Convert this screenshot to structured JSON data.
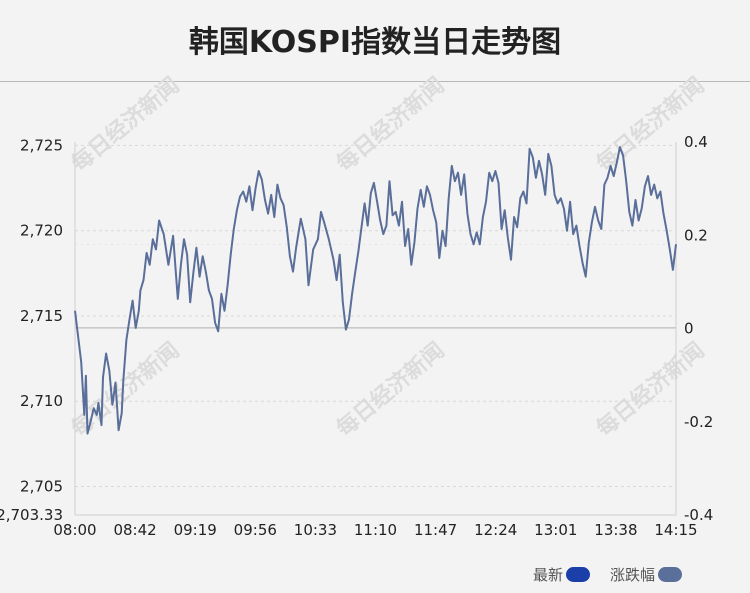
{
  "chart_data": {
    "type": "line",
    "title": "韩国KOSPI指数当日走势图",
    "watermark": "每日经济新闻",
    "x_tick_labels": [
      "08:00",
      "08:42",
      "09:19",
      "09:56",
      "10:33",
      "11:10",
      "11:47",
      "12:24",
      "13:01",
      "13:38",
      "14:15"
    ],
    "y_left_tick_labels": [
      "2,725",
      "2,720",
      "2,715",
      "2,710",
      "2,705",
      "2,703.33"
    ],
    "y_right_tick_labels": [
      "0.4",
      "0.2",
      "0",
      "-0.2",
      "-0.4"
    ],
    "y_left_range": [
      2703.33,
      2725.2
    ],
    "y_right_range": [
      -0.4,
      0.4
    ],
    "reference_line": 2714.3,
    "grid": true,
    "legend_position": "bottom-right",
    "colors": {
      "series": "#5a6e9a",
      "latest_swatch": "#1a3fa8",
      "change_swatch": "#5b6f9b",
      "background": "#f3f3f3"
    },
    "series": [
      {
        "name": "最新",
        "x_minutes_from_0800": [
          0,
          2,
          4,
          6,
          7,
          8,
          10,
          12,
          14,
          15,
          17,
          18,
          20,
          22,
          24,
          26,
          28,
          30,
          31,
          33,
          35,
          37,
          39,
          41,
          42,
          44,
          46,
          48,
          50,
          52,
          54,
          57,
          60,
          63,
          66,
          68,
          70,
          72,
          74,
          76,
          78,
          80,
          82,
          84,
          86,
          88,
          90,
          92,
          94,
          96,
          98,
          100,
          102,
          104,
          106,
          108,
          110,
          112,
          114,
          116,
          118,
          120,
          122,
          124,
          126,
          128,
          130,
          132,
          134,
          136,
          138,
          140,
          142,
          145,
          148,
          150,
          153,
          156,
          158,
          160,
          163,
          166,
          168,
          170,
          172,
          174,
          176,
          178,
          180,
          182,
          184,
          186,
          188,
          190,
          192,
          194,
          196,
          198,
          200,
          202,
          204,
          206,
          208,
          210,
          212,
          214,
          216,
          218,
          220,
          222,
          224,
          226,
          228,
          230,
          232,
          234,
          236,
          238,
          240,
          242,
          244,
          246,
          248,
          250,
          252,
          254,
          256,
          258,
          260,
          262,
          264,
          266,
          268,
          270,
          272,
          274,
          276,
          278,
          280,
          282,
          284,
          286,
          288,
          290,
          292,
          294,
          296,
          298,
          300,
          302,
          304,
          306,
          308,
          310,
          312,
          314,
          316,
          318,
          320,
          322,
          324,
          326,
          328,
          330,
          332,
          334,
          336,
          338,
          340,
          342,
          344,
          346,
          348,
          350,
          352,
          354,
          356,
          358,
          360,
          362,
          364,
          366,
          368,
          370,
          372,
          374,
          376,
          378,
          380,
          382,
          384,
          386
        ],
        "values": [
          2715.3,
          2713.8,
          2712.3,
          2709.2,
          2711.5,
          2708.1,
          2708.8,
          2709.6,
          2709.2,
          2709.9,
          2708.6,
          2711.4,
          2712.8,
          2711.8,
          2709.8,
          2711.1,
          2708.3,
          2709.3,
          2711.2,
          2713.6,
          2714.8,
          2715.9,
          2714.3,
          2715.3,
          2716.5,
          2717.1,
          2718.7,
          2718.0,
          2719.5,
          2718.9,
          2720.6,
          2719.8,
          2718.0,
          2719.7,
          2716.0,
          2718.0,
          2719.5,
          2718.6,
          2715.8,
          2717.5,
          2719.0,
          2717.3,
          2718.5,
          2717.6,
          2716.5,
          2716.0,
          2714.6,
          2714.1,
          2716.3,
          2715.3,
          2716.8,
          2718.6,
          2720.1,
          2721.2,
          2722.0,
          2722.3,
          2721.7,
          2722.6,
          2721.2,
          2722.5,
          2723.5,
          2723.0,
          2721.8,
          2721.0,
          2722.1,
          2720.8,
          2722.7,
          2721.9,
          2721.5,
          2720.2,
          2718.5,
          2717.6,
          2719.0,
          2720.7,
          2719.5,
          2716.8,
          2718.9,
          2719.5,
          2721.1,
          2720.5,
          2719.5,
          2718.3,
          2717.1,
          2718.6,
          2715.8,
          2714.2,
          2714.8,
          2716.3,
          2717.6,
          2718.8,
          2720.2,
          2721.6,
          2720.3,
          2722.2,
          2722.8,
          2721.7,
          2720.6,
          2719.8,
          2720.3,
          2722.9,
          2720.9,
          2721.1,
          2720.3,
          2721.7,
          2719.1,
          2720.1,
          2718.0,
          2719.3,
          2721.3,
          2722.4,
          2721.4,
          2722.6,
          2722.1,
          2721.2,
          2720.5,
          2718.4,
          2720.0,
          2719.1,
          2721.9,
          2723.8,
          2722.9,
          2723.4,
          2722.1,
          2723.3,
          2721.0,
          2719.8,
          2719.2,
          2719.9,
          2719.2,
          2720.8,
          2721.7,
          2723.4,
          2722.9,
          2723.5,
          2722.8,
          2720.1,
          2721.2,
          2719.6,
          2718.3,
          2720.8,
          2720.2,
          2721.9,
          2722.3,
          2721.6,
          2724.8,
          2724.3,
          2723.1,
          2724.1,
          2723.3,
          2722.1,
          2724.5,
          2723.8,
          2722.1,
          2721.6,
          2721.9,
          2721.3,
          2720.0,
          2721.7,
          2719.8,
          2720.3,
          2719.1,
          2718.1,
          2717.3,
          2719.3,
          2720.5,
          2721.4,
          2720.6,
          2720.1,
          2722.7,
          2723.1,
          2723.8,
          2723.2,
          2724.0,
          2724.9,
          2724.4,
          2722.9,
          2721.1,
          2720.3,
          2721.8,
          2720.6,
          2721.3,
          2722.6,
          2723.2,
          2722.1,
          2722.7,
          2721.9,
          2722.3,
          2721.0,
          2720.0,
          2718.9,
          2717.7,
          2719.2,
          2717.3
        ]
      }
    ],
    "legend": [
      {
        "label": "最新"
      },
      {
        "label": "涨跌幅"
      }
    ]
  }
}
